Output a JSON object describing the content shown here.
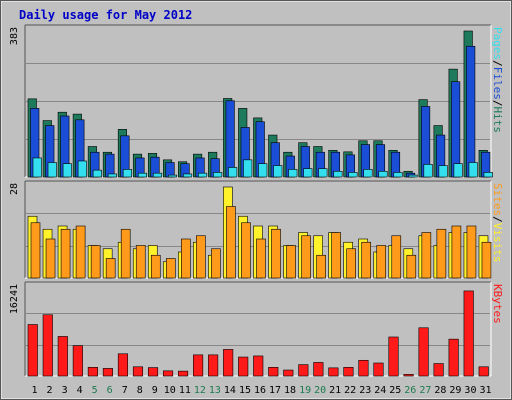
{
  "chart_data": [
    {
      "type": "bar",
      "title": "Daily usage for May 2012",
      "panel": "hits-files-pages",
      "ymax_label": "383",
      "ylim": [
        0,
        383
      ],
      "grid": true,
      "categories": [
        "1",
        "2",
        "3",
        "4",
        "5",
        "6",
        "7",
        "8",
        "9",
        "10",
        "11",
        "12",
        "13",
        "14",
        "15",
        "16",
        "17",
        "18",
        "19",
        "20",
        "21",
        "22",
        "23",
        "24",
        "25",
        "26",
        "27",
        "28",
        "29",
        "30",
        "31"
      ],
      "weekend_days": [
        "5",
        "6",
        "12",
        "13",
        "19",
        "20",
        "26",
        "27"
      ],
      "series": [
        {
          "name": "Hits",
          "color": "#1e7a5c",
          "values": [
            205,
            148,
            170,
            165,
            80,
            65,
            125,
            60,
            62,
            45,
            40,
            60,
            65,
            206,
            180,
            155,
            110,
            65,
            90,
            80,
            70,
            66,
            95,
            95,
            70,
            15,
            203,
            135,
            283,
            383,
            70
          ]
        },
        {
          "name": "Files",
          "color": "#1b4ed6",
          "values": [
            180,
            135,
            160,
            150,
            65,
            60,
            108,
            50,
            52,
            38,
            35,
            50,
            48,
            200,
            130,
            145,
            90,
            55,
            80,
            65,
            65,
            58,
            85,
            85,
            65,
            10,
            185,
            110,
            250,
            343,
            65
          ]
        },
        {
          "name": "Pages",
          "color": "#33dfee",
          "values": [
            50,
            38,
            35,
            42,
            18,
            8,
            20,
            10,
            10,
            5,
            8,
            10,
            12,
            25,
            45,
            35,
            30,
            20,
            22,
            22,
            15,
            12,
            20,
            15,
            12,
            5,
            33,
            30,
            35,
            38,
            12
          ]
        }
      ],
      "right_label_parts": [
        "Pages",
        "/",
        "Files",
        "/",
        "Hits"
      ]
    },
    {
      "type": "bar",
      "panel": "visits-sites",
      "ymax_label": "28",
      "ylim": [
        0,
        28
      ],
      "grid": true,
      "series": [
        {
          "name": "Visits",
          "color": "#fff12a",
          "values": [
            19,
            15,
            16,
            15,
            10,
            9,
            11,
            9,
            10,
            5,
            8,
            11,
            7,
            28,
            19,
            16,
            16,
            10,
            14,
            13,
            14,
            11,
            12,
            8,
            10,
            9,
            13,
            10,
            14,
            14,
            13
          ]
        },
        {
          "name": "Sites",
          "color": "#ff9a1a",
          "values": [
            17,
            12,
            15,
            16,
            10,
            6,
            15,
            10,
            7,
            6,
            12,
            13,
            9,
            22,
            17,
            12,
            15,
            10,
            13,
            7,
            14,
            9,
            11,
            10,
            13,
            7,
            14,
            15,
            16,
            16,
            11
          ]
        }
      ],
      "right_label_parts": [
        "Sites",
        "/",
        "Visits"
      ]
    },
    {
      "type": "bar",
      "panel": "kbytes",
      "ymax_label": "16241",
      "ylim": [
        0,
        16241
      ],
      "grid": true,
      "series": [
        {
          "name": "KBytes",
          "color": "#ff1a1a",
          "values": [
            9500,
            11300,
            7300,
            5600,
            1600,
            1400,
            4100,
            1700,
            1550,
            950,
            900,
            3900,
            3900,
            4900,
            3500,
            3700,
            1600,
            1100,
            2100,
            2500,
            1500,
            1600,
            2900,
            2400,
            7200,
            300,
            8900,
            2300,
            6800,
            15700,
            1700
          ]
        }
      ],
      "right_label_parts": [
        "KBytes"
      ]
    }
  ],
  "colors": {
    "title": "#0000c8",
    "weekend_label": "#1d7a4e",
    "weekday_label": "#000000",
    "panel_bg": "#c0c0c0",
    "frame": "#c0c0c0",
    "grid": "#888888"
  }
}
